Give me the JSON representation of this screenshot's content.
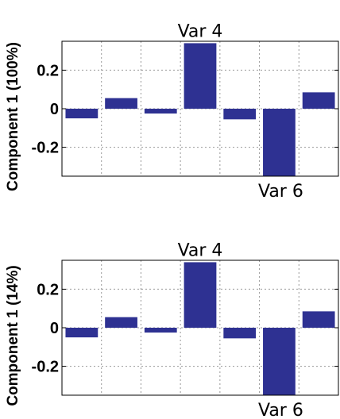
{
  "chart_data": [
    {
      "type": "bar",
      "ylabel": "Component 1 (100%)",
      "values": [
        -0.05,
        0.055,
        -0.025,
        0.34,
        -0.055,
        -0.35,
        0.085
      ],
      "ylim": [
        -0.35,
        0.35
      ],
      "yticks": [
        -0.2,
        0,
        0.2
      ],
      "ytick_labels": [
        "-0.2",
        "0",
        "0.2"
      ],
      "grid": true,
      "bar_color": "#2e3192",
      "annotations": [
        {
          "text": "Var 4",
          "bar_index": 3,
          "position": "above"
        },
        {
          "text": "Var 6",
          "bar_index": 5,
          "position": "below"
        }
      ]
    },
    {
      "type": "bar",
      "ylabel": "Component 1 (14%)",
      "values": [
        -0.05,
        0.055,
        -0.025,
        0.34,
        -0.055,
        -0.35,
        0.085
      ],
      "ylim": [
        -0.35,
        0.35
      ],
      "yticks": [
        -0.2,
        0,
        0.2
      ],
      "ytick_labels": [
        "-0.2",
        "0",
        "0.2"
      ],
      "grid": true,
      "bar_color": "#2e3192",
      "annotations": [
        {
          "text": "Var 4",
          "bar_index": 3,
          "position": "above"
        },
        {
          "text": "Var 6",
          "bar_index": 5,
          "position": "below"
        }
      ]
    }
  ]
}
